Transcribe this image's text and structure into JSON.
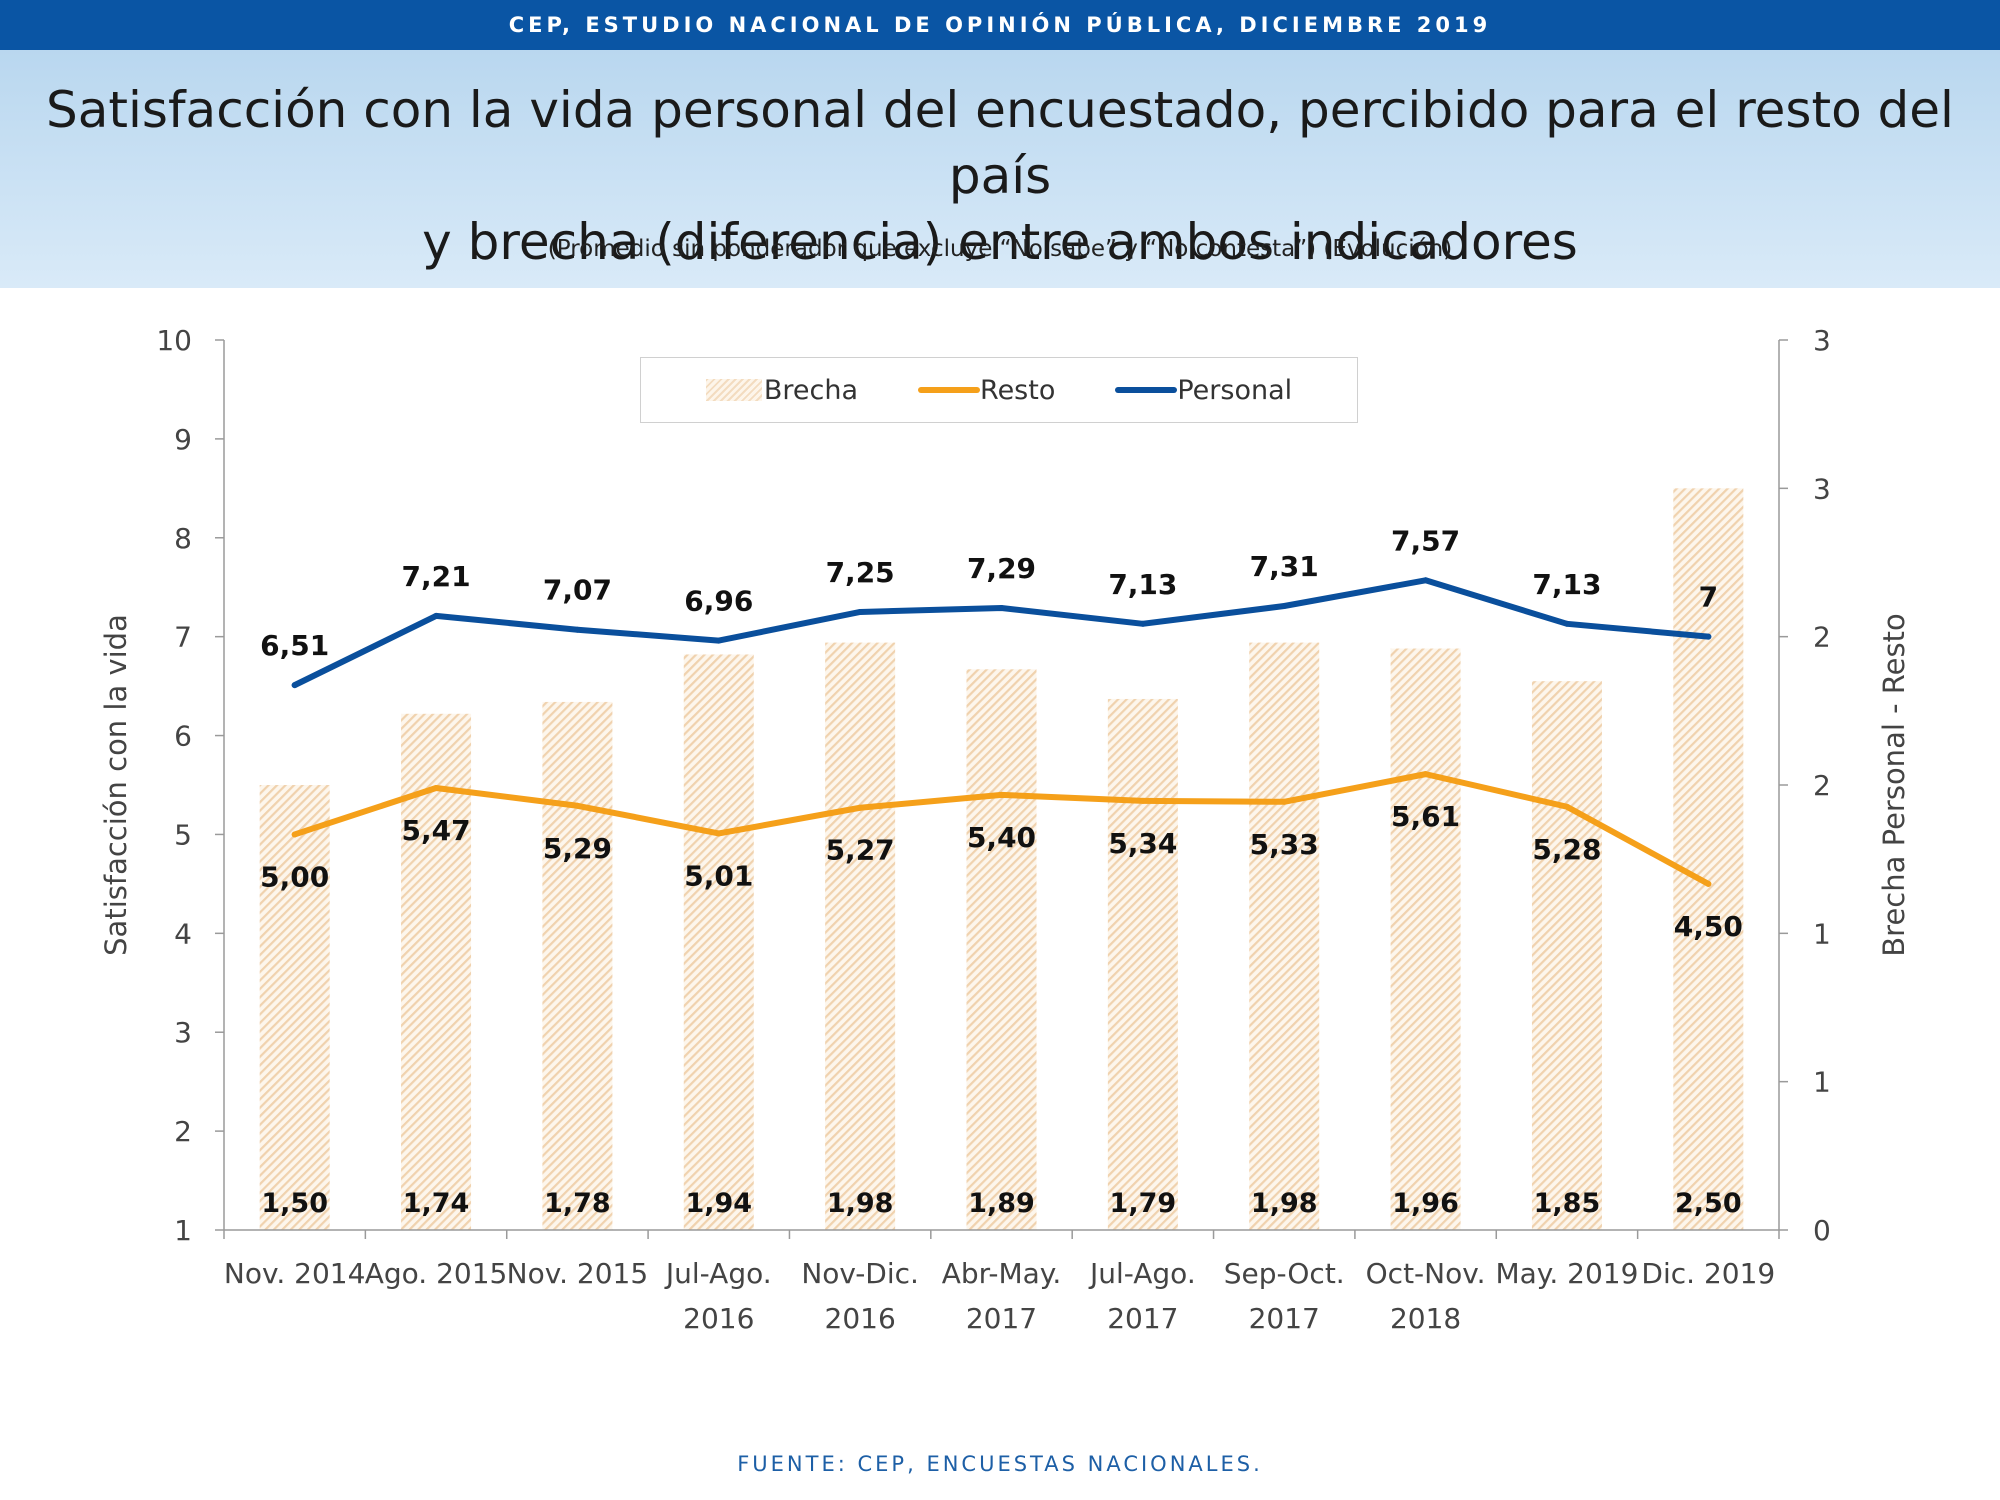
{
  "header": {
    "top_bar": "CEP, ESTUDIO NACIONAL DE OPINIÓN PÚBLICA, DICIEMBRE 2019",
    "title_line1": "Satisfacción con la vida personal del encuestado, percibido para el resto del país",
    "title_line2": "y brecha (diferencia) entre ambos indicadores",
    "subtitle": "(Promedio sin ponderador que excluye “No sabe” y “No contesta”) (Evolución)"
  },
  "footer": {
    "source": "FUENTE: CEP, ENCUESTAS NACIONALES."
  },
  "colors": {
    "personal": "#0a4f9c",
    "resto": "#f5a01a",
    "brecha": "#f3dcc0",
    "top_bar": "#0a55a4"
  },
  "chart_data": {
    "type": "bar",
    "categories": [
      [
        "Nov. 2014"
      ],
      [
        "Ago. 2015"
      ],
      [
        "Nov. 2015"
      ],
      [
        "Jul-Ago.",
        "2016"
      ],
      [
        "Nov-Dic.",
        "2016"
      ],
      [
        "Abr-May.",
        "2017"
      ],
      [
        "Jul-Ago.",
        "2017"
      ],
      [
        "Sep-Oct.",
        "2017"
      ],
      [
        "Oct-Nov.",
        "2018"
      ],
      [
        "May. 2019"
      ],
      [
        "Dic. 2019"
      ]
    ],
    "ylabel": "Satisfacción con la vida",
    "y2label": "Brecha Personal - Resto",
    "ylim": [
      1,
      10
    ],
    "y2lim": [
      0,
      3
    ],
    "yticks": [
      "1",
      "2",
      "3",
      "4",
      "5",
      "6",
      "7",
      "8",
      "9",
      "10"
    ],
    "y2ticks": [
      "0",
      "1",
      "1",
      "2",
      "2",
      "3",
      "3"
    ],
    "legend": [
      "Brecha",
      "Resto",
      "Personal"
    ],
    "series": [
      {
        "name": "Brecha",
        "axis": "right",
        "kind": "bar",
        "values": [
          1.5,
          1.74,
          1.78,
          1.94,
          1.98,
          1.89,
          1.79,
          1.98,
          1.96,
          1.85,
          2.5
        ],
        "labels": [
          "1,50",
          "1,74",
          "1,78",
          "1,94",
          "1,98",
          "1,89",
          "1,79",
          "1,98",
          "1,96",
          "1,85",
          "2,50"
        ]
      },
      {
        "name": "Resto",
        "axis": "left",
        "kind": "line",
        "values": [
          5.0,
          5.47,
          5.29,
          5.01,
          5.27,
          5.4,
          5.34,
          5.33,
          5.61,
          5.28,
          4.5
        ],
        "labels": [
          "5,00",
          "5,47",
          "5,29",
          "5,01",
          "5,27",
          "5,40",
          "5,34",
          "5,33",
          "5,61",
          "5,28",
          "4,50"
        ]
      },
      {
        "name": "Personal",
        "axis": "left",
        "kind": "line",
        "values": [
          6.51,
          7.21,
          7.07,
          6.96,
          7.25,
          7.29,
          7.13,
          7.31,
          7.57,
          7.13,
          7.0
        ],
        "labels": [
          "6,51",
          "7,21",
          "7,07",
          "6,96",
          "7,25",
          "7,29",
          "7,13",
          "7,31",
          "7,57",
          "7,13",
          "7"
        ]
      }
    ]
  }
}
